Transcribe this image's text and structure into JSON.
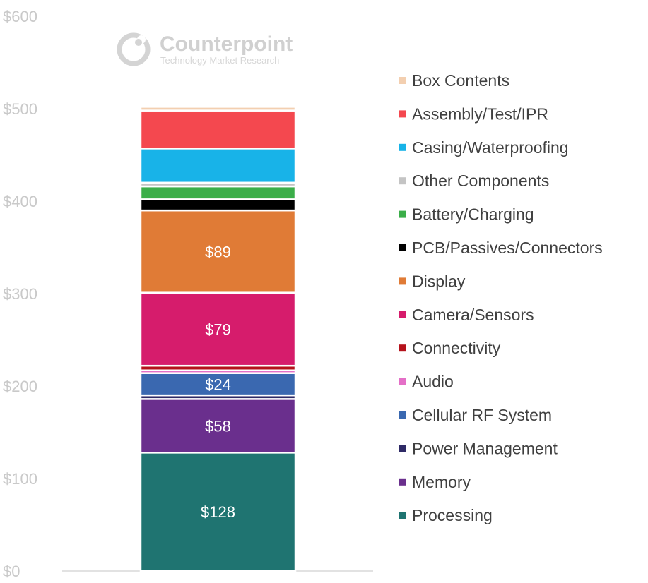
{
  "logo": {
    "name": "Counterpoint",
    "tagline": "Technology Market Research"
  },
  "chart_data": {
    "type": "bar",
    "stacked": true,
    "title": "",
    "xlabel": "",
    "ylabel": "",
    "ylim": [
      0,
      600
    ],
    "yticks": [
      "$0",
      "$100",
      "$200",
      "$300",
      "$400",
      "$500",
      "$600"
    ],
    "grid": false,
    "legend_position": "right",
    "series": [
      {
        "name": "Processing",
        "value": 128,
        "label": "$128",
        "color": "#1f7471"
      },
      {
        "name": "Memory",
        "value": 58,
        "label": "$58",
        "color": "#6a2f8d"
      },
      {
        "name": "Power Management",
        "value": 4,
        "label": "",
        "color": "#2e2a66"
      },
      {
        "name": "Cellular RF System",
        "value": 24,
        "label": "$24",
        "color": "#3a68b0"
      },
      {
        "name": "Audio",
        "value": 3,
        "label": "",
        "color": "#e46fc7"
      },
      {
        "name": "Connectivity",
        "value": 5,
        "label": "",
        "color": "#b5121b"
      },
      {
        "name": "Camera/Sensors",
        "value": 79,
        "label": "$79",
        "color": "#d61c6c"
      },
      {
        "name": "Display",
        "value": 89,
        "label": "$89",
        "color": "#e07b36"
      },
      {
        "name": "PCB/Passives/Connectors",
        "value": 12,
        "label": "",
        "color": "#000000"
      },
      {
        "name": "Battery/Charging",
        "value": 14,
        "label": "",
        "color": "#3bae49"
      },
      {
        "name": "Other Components",
        "value": 4,
        "label": "",
        "color": "#c4c4c4"
      },
      {
        "name": "Casing/Waterproofing",
        "value": 37,
        "label": "",
        "color": "#18b3e8"
      },
      {
        "name": "Assembly/Test/IPR",
        "value": 41,
        "label": "",
        "color": "#f4484f"
      },
      {
        "name": "Box Contents",
        "value": 4,
        "label": "",
        "color": "#f3cfb0"
      }
    ]
  }
}
